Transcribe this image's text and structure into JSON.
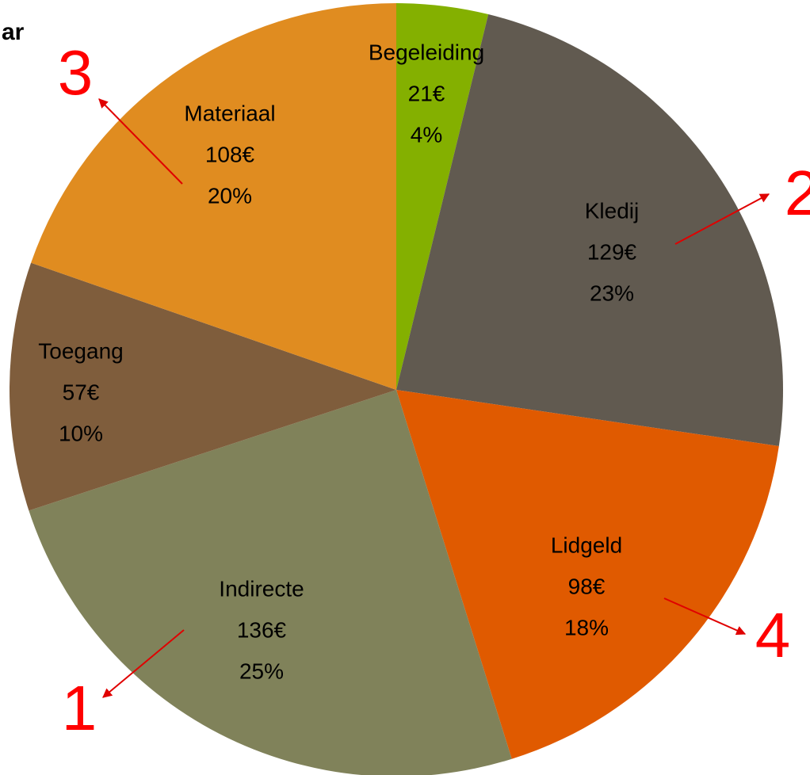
{
  "chart_data": {
    "type": "pie",
    "title": "ar",
    "categories": [
      "Begeleiding",
      "Kledij",
      "Lidgeld",
      "Indirecte",
      "Toegang",
      "Materiaal"
    ],
    "values": [
      21,
      129,
      98,
      136,
      57,
      108
    ],
    "value_labels": [
      "21€",
      "129€",
      "98€",
      "136€",
      "57€",
      "108€"
    ],
    "percentages": [
      4,
      23,
      18,
      25,
      10,
      20
    ],
    "percentage_labels": [
      "4%",
      "23%",
      "18%",
      "25%",
      "10%",
      "20%"
    ],
    "colors": [
      "#84b000",
      "#615a50",
      "#e05a00",
      "#80825a",
      "#7f5d3c",
      "#e08c20"
    ],
    "annotations": [
      "1",
      "2",
      "3",
      "4"
    ]
  }
}
